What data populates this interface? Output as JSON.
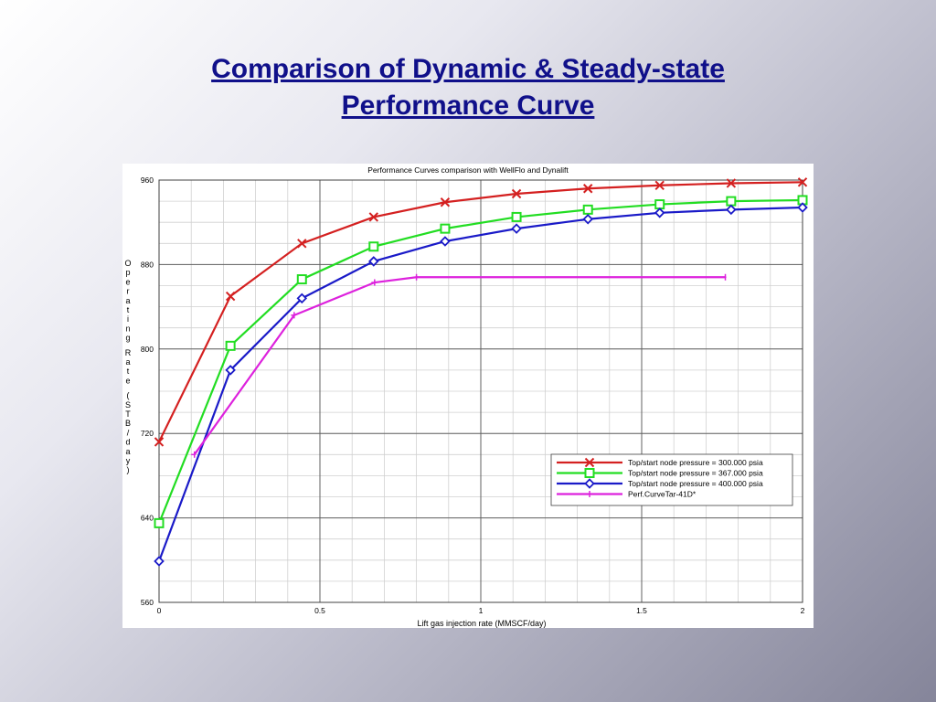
{
  "slide": {
    "title_line1": "Comparison of Dynamic & Steady-state",
    "title_line2": "Performance Curve"
  },
  "chart_data": {
    "type": "line",
    "title": "Performance Curves comparison with WellFlo and Dynalift",
    "xlabel": "Lift gas injection rate (MMSCF/day)",
    "ylabel": "Operating Rate (STB/day)",
    "xlim": [
      0,
      2
    ],
    "ylim": [
      560,
      960
    ],
    "x_ticks": [
      0,
      0.5,
      1,
      1.5,
      2
    ],
    "x_tick_labels": [
      "0",
      "0.5",
      "1",
      "1.5",
      "2"
    ],
    "y_ticks": [
      560,
      640,
      720,
      800,
      880,
      960
    ],
    "x_minor_step": 0.1,
    "y_minor_step": 20,
    "grid": true,
    "legend_position": "bottom-right",
    "series": [
      {
        "name": "Top/start node pressure = 300.000 psia",
        "color": "#d42020",
        "marker": "x",
        "x": [
          0,
          0.222,
          0.444,
          0.667,
          0.889,
          1.111,
          1.333,
          1.556,
          1.778,
          2.0
        ],
        "y": [
          712,
          850,
          900,
          925,
          939,
          947,
          952,
          955,
          957,
          958
        ]
      },
      {
        "name": "Top/start node pressure = 367.000 psia",
        "color": "#22dd22",
        "marker": "square",
        "x": [
          0,
          0.222,
          0.444,
          0.667,
          0.889,
          1.111,
          1.333,
          1.556,
          1.778,
          2.0
        ],
        "y": [
          635,
          803,
          866,
          897,
          914,
          925,
          932,
          937,
          940,
          941
        ]
      },
      {
        "name": "Top/start node pressure = 400.000 psia",
        "color": "#1a1ac8",
        "marker": "diamond",
        "x": [
          0,
          0.222,
          0.444,
          0.667,
          0.889,
          1.111,
          1.333,
          1.556,
          1.778,
          2.0
        ],
        "y": [
          599,
          780,
          848,
          883,
          902,
          914,
          923,
          929,
          932,
          934
        ]
      },
      {
        "name": "Perf.CurveTar-41D*",
        "color": "#dd22dd",
        "marker": "tick",
        "x": [
          0.11,
          0.42,
          0.67,
          0.8,
          1.76
        ],
        "y": [
          700,
          832,
          863,
          868,
          868
        ]
      }
    ]
  }
}
